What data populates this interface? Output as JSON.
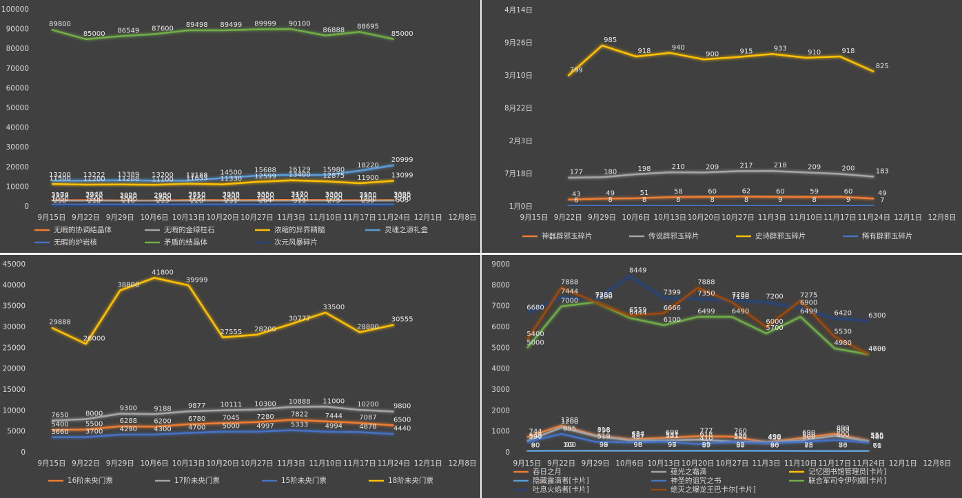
{
  "chart_data": [
    {
      "type": "line",
      "categories": [
        "9月15日",
        "9月22日",
        "9月29日",
        "10月6日",
        "10月13日",
        "10月20日",
        "10月27日",
        "11月3日",
        "11月10日",
        "11月17日",
        "11月24日",
        "12月1日",
        "12月8日"
      ],
      "ylim": [
        0,
        100000
      ],
      "yticks": [
        0,
        10000,
        20000,
        30000,
        40000,
        50000,
        60000,
        70000,
        80000,
        90000,
        100000
      ],
      "grid": false,
      "series": [
        {
          "name": "无暇的协调结晶体",
          "color": "#ed7d31",
          "values": [
            3174,
            3247,
            3025,
            2950,
            3310,
            3258,
            3350,
            3470,
            3330,
            3150,
            3305,
            null,
            null
          ]
        },
        {
          "name": "无暇的金绿柱石",
          "color": "#a5a5a5",
          "values": [
            2900,
            2970,
            2800,
            2800,
            2950,
            2900,
            3000,
            3100,
            3000,
            2900,
            3050,
            null,
            null
          ]
        },
        {
          "name": "浓缩的异界精髓",
          "color": "#ffc000",
          "values": [
            11500,
            11200,
            11288,
            11100,
            11653,
            11330,
            12599,
            13400,
            12875,
            11900,
            13099,
            null,
            null
          ]
        },
        {
          "name": "灵魂之源礼盒",
          "color": "#5b9bd5",
          "values": [
            13200,
            13222,
            13389,
            13200,
            13188,
            14500,
            15688,
            16129,
            15980,
            18220,
            20999,
            null,
            null
          ]
        },
        {
          "name": "无暇的炉岩核",
          "color": "#4472c4",
          "values": [
            1050,
            1100,
            1080,
            1100,
            1150,
            1200,
            1250,
            1300,
            1250,
            1200,
            1250,
            null,
            null
          ]
        },
        {
          "name": "矛盾的结晶体",
          "color": "#70ad47",
          "values": [
            89800,
            85000,
            86549,
            87600,
            89498,
            89499,
            89999,
            90100,
            86888,
            88695,
            85000,
            null,
            null
          ]
        },
        {
          "name": "次元风暴碎片",
          "color": "#264478",
          "values": [
            250,
            218,
            216,
            213,
            220,
            231,
            264,
            311,
            275,
            290,
            505,
            null,
            null
          ]
        }
      ]
    },
    {
      "type": "line",
      "categories": [
        "9月15日",
        "9月22日",
        "9月29日",
        "10月6日",
        "10月13日",
        "10月20日",
        "10月27日",
        "11月3日",
        "11月10日",
        "11月17日",
        "11月24日",
        "12月1日",
        "12月8日"
      ],
      "ylim": [
        0,
        1200
      ],
      "yticks": [
        {
          "value": 0,
          "label": "1月0日"
        },
        {
          "value": 200,
          "label": "7月18日"
        },
        {
          "value": 400,
          "label": "2月3日"
        },
        {
          "value": 600,
          "label": "8月22日"
        },
        {
          "value": 800,
          "label": "3月10日"
        },
        {
          "value": 1000,
          "label": "9月26日"
        },
        {
          "value": 1200,
          "label": "4月14日"
        }
      ],
      "grid": false,
      "series": [
        {
          "name": "神器辟邪玉碎片",
          "color": "#ed7d31",
          "values": [
            null,
            43,
            49,
            51,
            58,
            60,
            62,
            60,
            59,
            60,
            49,
            null,
            null
          ]
        },
        {
          "name": "传说辟邪玉碎片",
          "color": "#a5a5a5",
          "values": [
            null,
            177,
            180,
            198,
            210,
            209,
            217,
            218,
            209,
            200,
            183,
            null,
            null
          ]
        },
        {
          "name": "史诗辟邪玉碎片",
          "color": "#ffc000",
          "values": [
            null,
            799,
            985,
            918,
            940,
            900,
            915,
            933,
            910,
            918,
            825,
            null,
            null
          ]
        },
        {
          "name": "稀有辟邪玉碎片",
          "color": "#4472c4",
          "values": [
            null,
            6,
            8,
            8,
            8,
            8,
            8,
            9,
            8,
            9,
            7,
            null,
            null
          ]
        }
      ]
    },
    {
      "type": "line",
      "categories": [
        "9月15日",
        "9月22日",
        "9月29日",
        "10月6日",
        "10月13日",
        "10月20日",
        "10月27日",
        "11月3日",
        "11月10日",
        "11月17日",
        "11月24日",
        "12月1日",
        "12月8日"
      ],
      "ylim": [
        0,
        45000
      ],
      "yticks": [
        0,
        5000,
        10000,
        15000,
        20000,
        25000,
        30000,
        35000,
        40000,
        45000
      ],
      "grid": false,
      "series": [
        {
          "name": "16阶未央门票",
          "color": "#ed7d31",
          "values": [
            5400,
            5500,
            6288,
            6200,
            6780,
            7045,
            7280,
            7822,
            7444,
            7087,
            6500,
            null,
            null
          ]
        },
        {
          "name": "17阶未央门票",
          "color": "#a5a5a5",
          "values": [
            7650,
            8000,
            9300,
            9188,
            9877,
            10111,
            10300,
            10888,
            11000,
            10200,
            9800,
            null,
            null
          ]
        },
        {
          "name": "15阶未央门票",
          "color": "#4472c4",
          "values": [
            3660,
            3700,
            4290,
            4300,
            4700,
            5000,
            4997,
            5333,
            4994,
            4878,
            4440,
            null,
            null
          ]
        },
        {
          "name": "18阶未央门票",
          "color": "#ffc000",
          "values": [
            29888,
            26000,
            38800,
            41800,
            39999,
            27555,
            28200,
            30777,
            33500,
            28800,
            30555,
            null,
            null
          ]
        }
      ]
    },
    {
      "type": "line",
      "categories": [
        "9月15日",
        "9月22日",
        "9月29日",
        "10月6日",
        "10月13日",
        "10月20日",
        "10月27日",
        "11月3日",
        "11月10日",
        "11月17日",
        "11月24日",
        "12月1日",
        "12月8日"
      ],
      "ylim": [
        0,
        9000
      ],
      "yticks": [
        0,
        1000,
        2000,
        3000,
        4000,
        5000,
        6000,
        7000,
        8000,
        9000
      ],
      "grid": false,
      "series": [
        {
          "name": "吞日之月",
          "color": "#ed7d31",
          "values": [
            744,
            1288,
            818,
            634,
            698,
            777,
            760,
            490,
            690,
            899,
            555,
            null,
            null
          ]
        },
        {
          "name": "蕴光之霜滴",
          "color": "#a5a5a5",
          "values": [
            548,
            1200,
            796,
            587,
            581,
            618,
            529,
            499,
            580,
            800,
            530,
            null,
            null
          ]
        },
        {
          "name": "记忆图书馆管理员[卡片]",
          "color": "#ffc000",
          "values": [
            90,
            100,
            99,
            98,
            97,
            95,
            92,
            90,
            85,
            80,
            70,
            null,
            null
          ]
        },
        {
          "name": "隐藏露滴者[卡片]",
          "color": "#5b9bd5",
          "values": [
            80,
            99,
            98,
            96,
            96,
            89,
            88,
            86,
            78,
            76,
            61,
            null,
            null
          ]
        },
        {
          "name": "神圣的诅咒之书",
          "color": "#4472c4",
          "values": [
            500,
            895,
            519,
            487,
            521,
            410,
            500,
            450,
            500,
            600,
            480,
            null,
            null
          ]
        },
        {
          "name": "联合军司令伊列娜[卡片]",
          "color": "#70ad47",
          "values": [
            5000,
            7000,
            7200,
            6444,
            6100,
            6499,
            6490,
            5700,
            6499,
            4980,
            4699,
            null,
            null
          ]
        },
        {
          "name": "吐息火焰者[卡片]",
          "color": "#264478",
          "values": [
            6680,
            7444,
            7288,
            8449,
            7399,
            7350,
            7280,
            7200,
            6900,
            6420,
            6300,
            null,
            null
          ]
        },
        {
          "name": "绝灭之爆龙王巴卡尔[卡片]",
          "color": "#9e480e",
          "values": [
            5400,
            7888,
            7200,
            6559,
            6666,
            7888,
            7190,
            6000,
            7275,
            5530,
            4700,
            null,
            null
          ]
        }
      ]
    }
  ]
}
